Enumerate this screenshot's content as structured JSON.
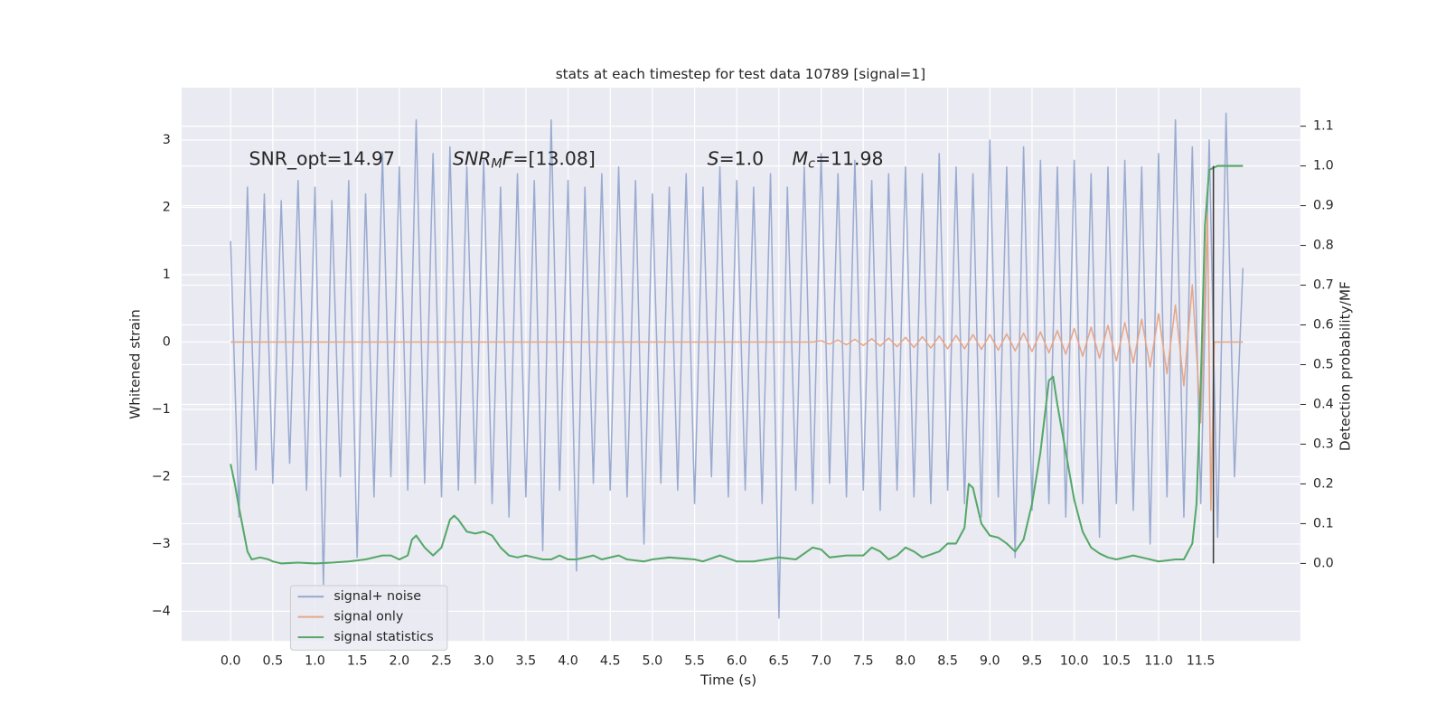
{
  "chart_data": {
    "type": "line",
    "title": "stats at each timestep for test data 10789 [signal=1]",
    "xlabel": "Time (s)",
    "ylabel": "Whitened strain",
    "y2label": "Detection probability/MF",
    "xlim": [
      -0.58,
      12.68
    ],
    "ylim": [
      -4.44,
      3.78
    ],
    "y2lim": [
      -0.195,
      1.197
    ],
    "xticks": [
      {
        "value": 0,
        "label": "0.0"
      },
      0.5,
      {
        "value": 1,
        "label": "1.0"
      },
      1.5,
      {
        "value": 2,
        "label": "2.0"
      },
      2.5,
      {
        "value": 3,
        "label": "3.0"
      },
      3.5,
      {
        "value": 4,
        "label": "4.0"
      },
      4.5,
      {
        "value": 5,
        "label": "5.0"
      },
      5.5,
      {
        "value": 6,
        "label": "6.0"
      },
      6.5,
      {
        "value": 7,
        "label": "7.0"
      },
      7.5,
      {
        "value": 8,
        "label": "8.0"
      },
      8.5,
      {
        "value": 9,
        "label": "9.0"
      },
      9.5,
      {
        "value": 10,
        "label": "10.0"
      },
      10.5,
      {
        "value": 11,
        "label": "11.0"
      },
      11.5
    ],
    "yticks": [
      {
        "value": -4,
        "label": "−4"
      },
      {
        "value": -3,
        "label": "−3"
      },
      {
        "value": -2,
        "label": "−2"
      },
      {
        "value": -1,
        "label": "−1"
      },
      0,
      1,
      2,
      3
    ],
    "y2ticks": [
      {
        "value": 0,
        "label": "0.0"
      },
      0.1,
      0.2,
      0.3,
      0.4,
      0.5,
      0.6,
      0.7,
      0.8,
      0.9,
      {
        "value": 1,
        "label": "1.0"
      },
      1.1
    ],
    "grid": true,
    "legend": "lower left",
    "background": "#eaeaf2",
    "annotations": [
      [
        {
          "text": "SNR_opt=14.97"
        }
      ],
      [
        {
          "text": "SNR",
          "italic": true
        },
        {
          "text": "M",
          "italic": true,
          "sub": true
        },
        {
          "text": "F",
          "italic": true
        },
        {
          "text": "=[13.08]"
        }
      ],
      [
        {
          "text": "S",
          "italic": true
        },
        {
          "text": "=1.0"
        }
      ],
      [
        {
          "text": "M",
          "italic": true
        },
        {
          "text": "c",
          "italic": true,
          "sub": true
        },
        {
          "text": "=11.98"
        }
      ]
    ],
    "vline": {
      "x": 11.65,
      "y2": [
        0,
        1.0
      ],
      "color": "#3a3a3a"
    },
    "series": [
      {
        "name": "signal+ noise",
        "color": "#9aabd0",
        "axis": "y",
        "x": [
          0.0,
          0.1,
          0.2,
          0.3,
          0.4,
          0.5,
          0.6,
          0.7,
          0.8,
          0.9,
          1.0,
          1.1,
          1.2,
          1.3,
          1.4,
          1.5,
          1.6,
          1.7,
          1.8,
          1.9,
          2.0,
          2.1,
          2.2,
          2.3,
          2.4,
          2.5,
          2.6,
          2.7,
          2.8,
          2.9,
          3.0,
          3.1,
          3.2,
          3.3,
          3.4,
          3.5,
          3.6,
          3.7,
          3.8,
          3.9,
          4.0,
          4.1,
          4.2,
          4.3,
          4.4,
          4.5,
          4.6,
          4.7,
          4.8,
          4.9,
          5.0,
          5.1,
          5.2,
          5.3,
          5.4,
          5.5,
          5.6,
          5.7,
          5.8,
          5.9,
          6.0,
          6.1,
          6.2,
          6.3,
          6.4,
          6.5,
          6.6,
          6.7,
          6.8,
          6.9,
          7.0,
          7.1,
          7.2,
          7.3,
          7.4,
          7.5,
          7.6,
          7.7,
          7.8,
          7.9,
          8.0,
          8.1,
          8.2,
          8.3,
          8.4,
          8.5,
          8.6,
          8.7,
          8.8,
          8.9,
          9.0,
          9.1,
          9.2,
          9.3,
          9.4,
          9.5,
          9.6,
          9.7,
          9.8,
          9.9,
          10.0,
          10.1,
          10.2,
          10.3,
          10.4,
          10.5,
          10.6,
          10.7,
          10.8,
          10.9,
          11.0,
          11.1,
          11.2,
          11.3,
          11.4,
          11.5,
          11.6,
          11.7,
          11.8,
          11.9,
          12.0
        ],
        "values": [
          1.5,
          -2.6,
          2.3,
          -1.9,
          2.2,
          -2.1,
          2.1,
          -1.8,
          2.4,
          -2.2,
          2.3,
          -3.6,
          2.1,
          -2.0,
          2.4,
          -3.2,
          2.2,
          -2.3,
          2.8,
          -2.0,
          2.6,
          -2.2,
          3.3,
          -2.1,
          2.8,
          -2.3,
          2.9,
          -2.2,
          2.6,
          -2.1,
          2.7,
          -2.4,
          2.3,
          -2.6,
          2.5,
          -2.3,
          2.4,
          -3.1,
          3.3,
          -2.2,
          2.4,
          -3.4,
          2.3,
          -2.1,
          2.5,
          -2.2,
          2.6,
          -2.3,
          2.4,
          -3.0,
          2.2,
          -2.1,
          2.3,
          -2.2,
          2.5,
          -2.4,
          2.3,
          -2.0,
          2.6,
          -2.3,
          2.4,
          -2.2,
          2.3,
          -2.4,
          2.5,
          -4.1,
          2.3,
          -2.2,
          2.6,
          -2.4,
          2.8,
          -2.1,
          2.5,
          -2.3,
          2.7,
          -2.2,
          2.4,
          -2.5,
          2.5,
          -2.2,
          2.6,
          -2.3,
          2.5,
          -2.4,
          2.8,
          -2.2,
          2.6,
          -2.4,
          2.5,
          -2.6,
          3.0,
          -2.3,
          2.6,
          -3.2,
          2.9,
          -2.5,
          2.7,
          -2.4,
          2.6,
          -2.6,
          2.7,
          -2.4,
          2.5,
          -2.9,
          2.6,
          -2.4,
          2.7,
          -2.5,
          2.6,
          -3.0,
          2.8,
          -2.3,
          3.3,
          -2.6,
          2.9,
          -2.4,
          3.0,
          -2.9,
          3.4,
          -2.0,
          1.1
        ]
      },
      {
        "name": "signal only",
        "color": "#e5a68a",
        "axis": "y",
        "x": [
          0,
          6.9,
          7.0,
          7.1,
          7.2,
          7.3,
          7.4,
          7.5,
          7.6,
          7.7,
          7.8,
          7.9,
          8.0,
          8.1,
          8.2,
          8.3,
          8.4,
          8.5,
          8.6,
          8.7,
          8.8,
          8.9,
          9.0,
          9.1,
          9.2,
          9.3,
          9.4,
          9.5,
          9.6,
          9.7,
          9.8,
          9.9,
          10.0,
          10.1,
          10.2,
          10.3,
          10.4,
          10.5,
          10.6,
          10.7,
          10.8,
          10.9,
          11.0,
          11.1,
          11.2,
          11.3,
          11.4,
          11.5,
          11.58,
          11.62,
          11.66,
          12.0
        ],
        "values": [
          0,
          0,
          0.02,
          -0.03,
          0.03,
          -0.04,
          0.04,
          -0.05,
          0.05,
          -0.06,
          0.06,
          -0.07,
          0.07,
          -0.08,
          0.08,
          -0.09,
          0.09,
          -0.1,
          0.1,
          -0.1,
          0.11,
          -0.11,
          0.11,
          -0.12,
          0.12,
          -0.13,
          0.13,
          -0.14,
          0.15,
          -0.16,
          0.17,
          -0.18,
          0.2,
          -0.21,
          0.22,
          -0.24,
          0.25,
          -0.28,
          0.29,
          -0.31,
          0.34,
          -0.37,
          0.42,
          -0.47,
          0.55,
          -0.65,
          0.85,
          -1.2,
          1.9,
          -2.5,
          0,
          0
        ]
      },
      {
        "name": "signal statistics",
        "color": "#55a868",
        "axis": "y2",
        "x": [
          0.0,
          0.05,
          0.1,
          0.2,
          0.25,
          0.35,
          0.45,
          0.5,
          0.6,
          0.8,
          1.0,
          1.2,
          1.4,
          1.6,
          1.8,
          1.9,
          2.0,
          2.1,
          2.15,
          2.2,
          2.3,
          2.4,
          2.5,
          2.6,
          2.65,
          2.7,
          2.8,
          2.9,
          3.0,
          3.1,
          3.2,
          3.3,
          3.4,
          3.5,
          3.6,
          3.7,
          3.8,
          3.9,
          4.0,
          4.1,
          4.3,
          4.4,
          4.6,
          4.7,
          4.9,
          5.0,
          5.2,
          5.5,
          5.6,
          5.8,
          6.0,
          6.2,
          6.5,
          6.7,
          6.9,
          7.0,
          7.1,
          7.3,
          7.5,
          7.6,
          7.7,
          7.8,
          7.9,
          8.0,
          8.1,
          8.2,
          8.4,
          8.5,
          8.6,
          8.7,
          8.75,
          8.8,
          8.9,
          9.0,
          9.1,
          9.2,
          9.3,
          9.4,
          9.5,
          9.6,
          9.7,
          9.75,
          9.8,
          9.9,
          10.0,
          10.1,
          10.2,
          10.3,
          10.4,
          10.5,
          10.7,
          10.9,
          11.0,
          11.2,
          11.3,
          11.4,
          11.45,
          11.5,
          11.55,
          11.6,
          11.7,
          12.0
        ],
        "values": [
          0.25,
          0.2,
          0.14,
          0.03,
          0.01,
          0.015,
          0.01,
          0.005,
          0,
          0.002,
          0,
          0.002,
          0.005,
          0.01,
          0.02,
          0.02,
          0.01,
          0.02,
          0.06,
          0.07,
          0.04,
          0.02,
          0.04,
          0.11,
          0.12,
          0.11,
          0.08,
          0.075,
          0.08,
          0.07,
          0.04,
          0.02,
          0.015,
          0.02,
          0.015,
          0.01,
          0.01,
          0.02,
          0.01,
          0.01,
          0.02,
          0.01,
          0.02,
          0.01,
          0.005,
          0.01,
          0.015,
          0.01,
          0.005,
          0.02,
          0.005,
          0.005,
          0.015,
          0.01,
          0.04,
          0.035,
          0.015,
          0.02,
          0.02,
          0.04,
          0.03,
          0.01,
          0.02,
          0.04,
          0.03,
          0.015,
          0.03,
          0.05,
          0.05,
          0.09,
          0.2,
          0.19,
          0.1,
          0.07,
          0.065,
          0.05,
          0.03,
          0.06,
          0.15,
          0.28,
          0.46,
          0.47,
          0.4,
          0.28,
          0.16,
          0.08,
          0.04,
          0.025,
          0.015,
          0.01,
          0.02,
          0.01,
          0.005,
          0.01,
          0.01,
          0.05,
          0.15,
          0.45,
          0.85,
          0.99,
          1.0,
          1.0
        ]
      }
    ]
  }
}
